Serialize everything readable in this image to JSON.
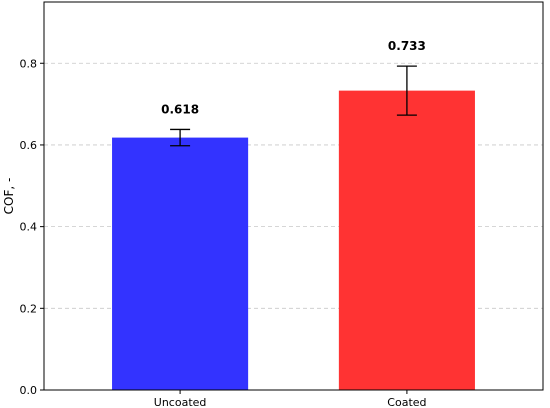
{
  "chart_data": {
    "type": "bar",
    "title": "",
    "xlabel": "",
    "ylabel": "COF, -",
    "ylim": [
      0,
      0.95
    ],
    "yticks": [
      0.0,
      0.2,
      0.4,
      0.6,
      0.8
    ],
    "ytick_labels": [
      "0.0",
      "0.2",
      "0.4",
      "0.6",
      "0.8"
    ],
    "grid": "y-dashed",
    "categories": [
      "Uncoated",
      "Coated"
    ],
    "values": [
      0.618,
      0.733
    ],
    "errors": [
      0.02,
      0.06
    ],
    "data_labels": [
      "0.618",
      "0.733"
    ],
    "colors": [
      "#3333ff",
      "#ff3333"
    ]
  }
}
